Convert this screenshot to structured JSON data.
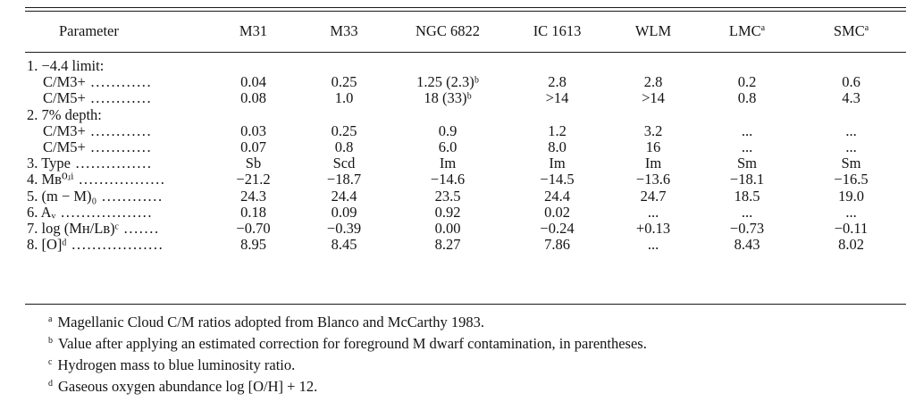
{
  "header": {
    "param": "Parameter",
    "galaxies": [
      {
        "name": "M31",
        "note": ""
      },
      {
        "name": "M33",
        "note": ""
      },
      {
        "name": "NGC 6822",
        "note": ""
      },
      {
        "name": "IC 1613",
        "note": ""
      },
      {
        "name": "WLM",
        "note": ""
      },
      {
        "name": "LMC",
        "note": "a"
      },
      {
        "name": "SMC",
        "note": "a"
      }
    ]
  },
  "rows": [
    {
      "name": "1. −4.4 limit:",
      "dots": "",
      "values": [
        "",
        "",
        "",
        "",
        "",
        "",
        ""
      ]
    },
    {
      "name": "C/M3+",
      "dots": " ............",
      "values": [
        "0.04",
        "0.25",
        "1.25 (2.3)ᵇ",
        "2.8",
        "2.8",
        "0.2",
        "0.6"
      ]
    },
    {
      "name": "C/M5+",
      "dots": " ............",
      "values": [
        "0.08",
        "1.0",
        "18 (33)ᵇ",
        ">14",
        ">14",
        "0.8",
        "4.3"
      ]
    },
    {
      "name": "2. 7% depth:",
      "dots": "",
      "values": [
        "",
        "",
        "",
        "",
        "",
        "",
        ""
      ]
    },
    {
      "name": "C/M3+",
      "dots": " ............",
      "values": [
        "0.03",
        "0.25",
        "0.9",
        "1.2",
        "3.2",
        "...",
        "..."
      ]
    },
    {
      "name": "C/M5+",
      "dots": " ............",
      "values": [
        "0.07",
        "0.8",
        "6.0",
        "8.0",
        "16",
        "...",
        "..."
      ]
    },
    {
      "name": "3. Type",
      "dots": " ...............",
      "values": [
        "Sb",
        "Scd",
        "Im",
        "Im",
        "Im",
        "Sm",
        "Sm"
      ]
    },
    {
      "name": "4. Mʙ⁰ʴⁱ",
      "dots": " .................",
      "values": [
        "−21.2",
        "−18.7",
        "−14.6",
        "−14.5",
        "−13.6",
        "−18.1",
        "−16.5"
      ]
    },
    {
      "name": "5. (m − M)₀",
      "dots": " ............",
      "values": [
        "24.3",
        "24.4",
        "23.5",
        "24.4",
        "24.7",
        "18.5",
        "19.0"
      ]
    },
    {
      "name": "6. Aᵥ",
      "dots": " ..................",
      "values": [
        "0.18",
        "0.09",
        "0.92",
        "0.02",
        "...",
        "...",
        "..."
      ]
    },
    {
      "name": "7. log (Mʜ/Lʙ)ᶜ",
      "dots": " .......",
      "values": [
        "−0.70",
        "−0.39",
        "0.00",
        "−0.24",
        "+0.13",
        "−0.73",
        "−0.11"
      ]
    },
    {
      "name": "8. [O]ᵈ",
      "dots": " ..................",
      "values": [
        "8.95",
        "8.45",
        "8.27",
        "7.86",
        "...",
        "8.43",
        "8.02"
      ]
    }
  ],
  "footnotes": [
    {
      "mark": "a",
      "text": "Magellanic Cloud C/M ratios adopted from Blanco and McCarthy 1983."
    },
    {
      "mark": "b",
      "text": "Value after applying an estimated correction for foreground M dwarf contamination, in parentheses."
    },
    {
      "mark": "c",
      "text": "Hydrogen mass to blue luminosity ratio."
    },
    {
      "mark": "d",
      "text": "Gaseous oxygen abundance log [O/H] + 12."
    }
  ]
}
